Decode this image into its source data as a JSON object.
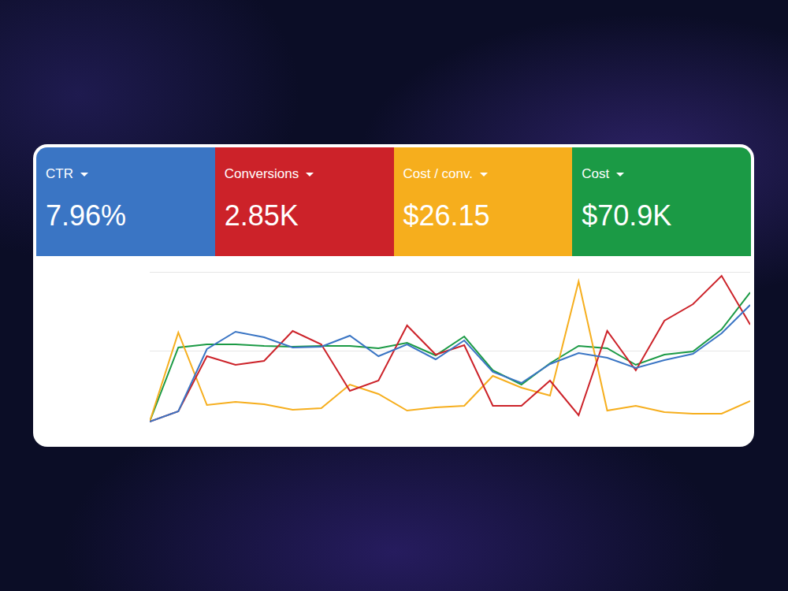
{
  "chart_data": {
    "type": "line",
    "categories": [
      null,
      null,
      null,
      null,
      null,
      null,
      null,
      null,
      null,
      null,
      null,
      null,
      null,
      null,
      null,
      null,
      null,
      null,
      null,
      null,
      null,
      null
    ],
    "series": [
      {
        "name": "CTR",
        "total": "7.96%",
        "color": "#3a75c4",
        "values": [
          5,
          11.5,
          51,
          62,
          58.5,
          52,
          52.5,
          59.5,
          46.5,
          54,
          44.5,
          56.5,
          36.5,
          29.5,
          41.5,
          48.5,
          45.5,
          39,
          44,
          48,
          61,
          79
        ]
      },
      {
        "name": "Conversions",
        "total": "2.85K",
        "color": "#cc2229",
        "values": [
          5,
          11.5,
          46.5,
          41,
          43.5,
          62.5,
          54,
          24.5,
          31,
          66,
          47.5,
          53.5,
          15,
          15,
          31,
          9,
          62.5,
          37.5,
          69,
          79.5,
          97.5,
          66.5
        ]
      },
      {
        "name": "Cost / conv.",
        "total": "$26.15",
        "color": "#f6ae1d",
        "values": [
          5,
          61.5,
          15.5,
          17.5,
          16,
          12.5,
          13.5,
          28.5,
          22.5,
          12,
          14,
          15,
          34,
          26.5,
          21.5,
          94,
          12,
          15,
          11,
          10,
          10,
          18
        ]
      },
      {
        "name": "Cost",
        "total": "$70.9K",
        "color": "#1b9a45",
        "values": [
          5,
          52,
          54,
          54,
          53,
          52.5,
          53,
          53,
          51.5,
          55,
          47,
          59,
          37.5,
          28.5,
          42,
          53,
          51.5,
          41,
          47.5,
          49.5,
          63.5,
          87
        ]
      }
    ],
    "ylim": [
      0,
      100
    ],
    "yticks": [
      0,
      50,
      100
    ],
    "grid": true,
    "tick_labels": false
  }
}
